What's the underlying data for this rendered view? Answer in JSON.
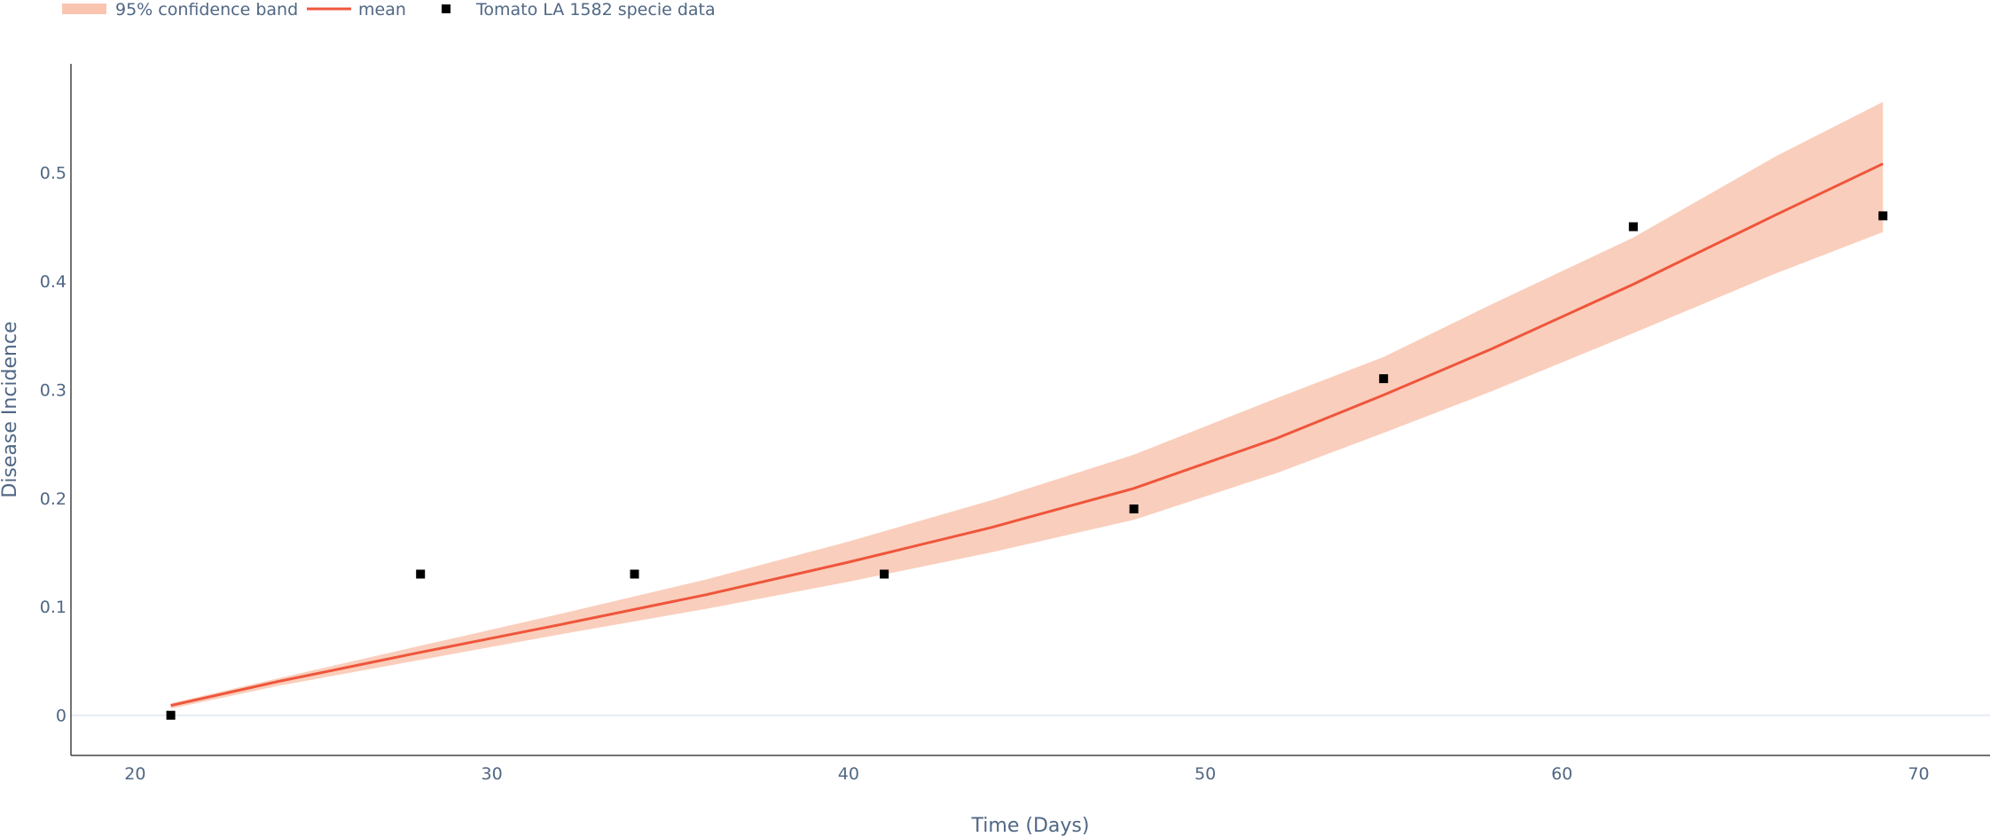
{
  "chart_data": {
    "type": "line",
    "xlabel": "Time (Days)",
    "ylabel": "Disease Incidence",
    "xlim": [
      18.2,
      72
    ],
    "ylim": [
      -0.037,
      0.6
    ],
    "xticks": [
      20,
      30,
      40,
      50,
      60,
      70
    ],
    "yticks": [
      0,
      0.1,
      0.2,
      0.3,
      0.4,
      0.5
    ],
    "ytick_labels": [
      "0",
      "0.1",
      "0.2",
      "0.3",
      "0.4",
      "0.5"
    ],
    "grid": "horizontal zero line only",
    "legend_position": "top-left, horizontal",
    "legend": {
      "band_label": "95% confidence band",
      "mean_label": "mean",
      "data_label": "Tomato LA 1582 specie data"
    },
    "band": {
      "name": "95% confidence band",
      "color": "#f9c5b0",
      "x": [
        21,
        24,
        28,
        32,
        36,
        40,
        44,
        48,
        52,
        55,
        58,
        62,
        66,
        69
      ],
      "lower": [
        0.006,
        0.027,
        0.051,
        0.075,
        0.098,
        0.123,
        0.15,
        0.18,
        0.223,
        0.26,
        0.298,
        0.352,
        0.407,
        0.445
      ],
      "upper": [
        0.011,
        0.034,
        0.064,
        0.094,
        0.125,
        0.16,
        0.198,
        0.24,
        0.292,
        0.33,
        0.378,
        0.44,
        0.515,
        0.565
      ]
    },
    "mean": {
      "name": "mean",
      "color": "#ef553b",
      "x": [
        21,
        24,
        28,
        32,
        36,
        40,
        44,
        48,
        52,
        55,
        58,
        62,
        66,
        69
      ],
      "y": [
        0.009,
        0.031,
        0.058,
        0.084,
        0.111,
        0.141,
        0.173,
        0.209,
        0.255,
        0.295,
        0.337,
        0.397,
        0.461,
        0.508
      ]
    },
    "series": [
      {
        "name": "Tomato LA 1582 specie data",
        "color": "#000000",
        "x": [
          21,
          28,
          34,
          41,
          48,
          55,
          62,
          69
        ],
        "y": [
          0.0,
          0.13,
          0.13,
          0.13,
          0.19,
          0.31,
          0.45,
          0.46
        ]
      }
    ]
  }
}
